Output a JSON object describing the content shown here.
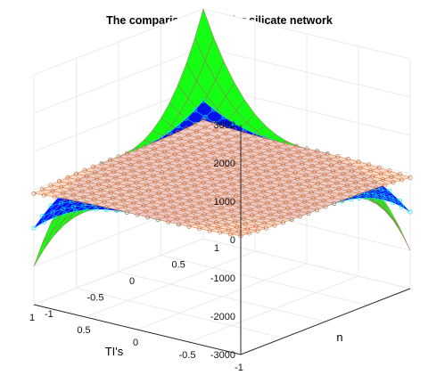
{
  "chart_data": {
    "type": "surface",
    "title": "The comparison of TI's for silicate network",
    "xlabel": "TI's",
    "ylabel": "n",
    "zlabel": "",
    "xlim": [
      -1,
      1
    ],
    "ylim": [
      -1,
      1
    ],
    "zlim": [
      -3000,
      3000
    ],
    "x_ticks": [
      "-1",
      "-0.5",
      "0",
      "0.5",
      "1"
    ],
    "y_ticks": [
      "-1",
      "-0.5",
      "0",
      "0.5",
      "1"
    ],
    "z_ticks": [
      "-3000",
      "-2000",
      "-1000",
      "0",
      "1000",
      "2000",
      "3000"
    ],
    "grid": true,
    "box": true,
    "grid_points": 21,
    "series": [
      {
        "color": "#00ff00",
        "edge_color": "#b06060",
        "marker": "none",
        "corner_values": {
          "x=1,y=1": 3000,
          "x=-1,y=-1": 3000,
          "x=1,y=-1": -2000,
          "x=-1,y=1": -2000
        },
        "center_value": 0
      },
      {
        "color": "#0000ff",
        "edge_color": "#00e5ff",
        "marker": "o",
        "corner_values": {
          "x=1,y=1": 600,
          "x=-1,y=-1": 600,
          "x=1,y=-1": -1000,
          "x=-1,y=1": -1000
        },
        "center_value": 0
      },
      {
        "color": "#ffd9c2",
        "edge_color": "#d07040",
        "marker": "o",
        "corner_values": {
          "x=1,y=1": 100,
          "x=-1,y=-1": 100,
          "x=1,y=-1": -100,
          "x=-1,y=1": -100
        },
        "center_value": 0
      }
    ]
  }
}
